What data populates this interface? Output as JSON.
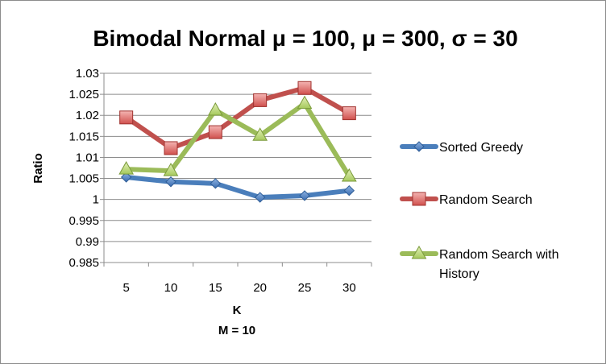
{
  "chart_data": {
    "type": "line",
    "title": "Bimodal Normal μ = 100, μ = 300, σ = 30",
    "xlabel": "K",
    "xlabel_sub": "M = 10",
    "ylabel": "Ratio",
    "categories": [
      "5",
      "10",
      "15",
      "20",
      "25",
      "30"
    ],
    "ylim": [
      0.985,
      1.03
    ],
    "yticks": [
      "1.03",
      "1.025",
      "1.02",
      "1.015",
      "1.01",
      "1.005",
      "1",
      "0.995",
      "0.99",
      "0.985"
    ],
    "ytick_values": [
      1.03,
      1.025,
      1.02,
      1.015,
      1.01,
      1.005,
      1.0,
      0.995,
      0.99,
      0.985
    ],
    "grid": true,
    "legend_position": "right",
    "series": [
      {
        "name": "Sorted Greedy",
        "values": [
          1.0053,
          1.0042,
          1.0038,
          1.0005,
          1.0009,
          1.0021
        ],
        "color": "#4a7ebb",
        "marker": "diamond"
      },
      {
        "name": "Random Search",
        "values": [
          1.0195,
          1.0122,
          1.016,
          1.0236,
          1.0265,
          1.0205
        ],
        "color": "#c0504d",
        "marker": "square"
      },
      {
        "name": "Random Search with History",
        "legend_lines": [
          "Random Search with",
          "History"
        ],
        "values": [
          1.0072,
          1.0068,
          1.0212,
          1.0152,
          1.0228,
          1.0055
        ],
        "color": "#9bbb59",
        "marker": "triangle"
      }
    ]
  }
}
